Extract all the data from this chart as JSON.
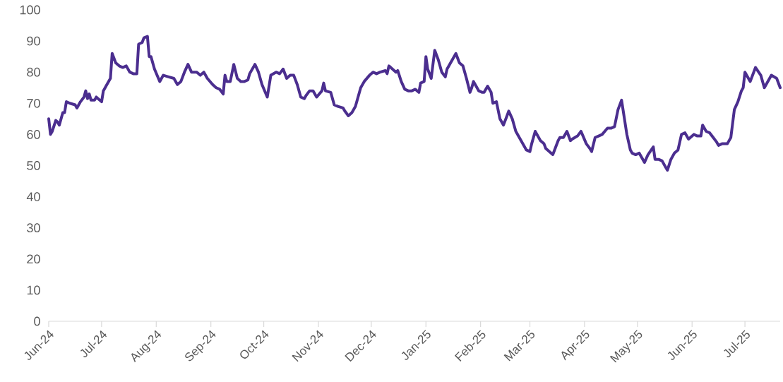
{
  "chart_data": {
    "type": "line",
    "x": [
      "2024-06-01",
      "2024-06-02",
      "2024-06-03",
      "2024-06-05",
      "2024-06-06",
      "2024-06-07",
      "2024-06-09",
      "2024-06-10",
      "2024-06-11",
      "2024-06-13",
      "2024-06-16",
      "2024-06-17",
      "2024-06-19",
      "2024-06-21",
      "2024-06-22",
      "2024-06-23",
      "2024-06-24",
      "2024-06-25",
      "2024-06-27",
      "2024-06-28",
      "2024-06-29",
      "2024-07-01",
      "2024-07-02",
      "2024-07-04",
      "2024-07-06",
      "2024-07-07",
      "2024-07-09",
      "2024-07-11",
      "2024-07-13",
      "2024-07-15",
      "2024-07-17",
      "2024-07-19",
      "2024-07-21",
      "2024-07-22",
      "2024-07-24",
      "2024-07-25",
      "2024-07-27",
      "2024-07-28",
      "2024-07-29",
      "2024-07-31",
      "2024-08-03",
      "2024-08-05",
      "2024-08-08",
      "2024-08-11",
      "2024-08-13",
      "2024-08-15",
      "2024-08-17",
      "2024-08-19",
      "2024-08-21",
      "2024-08-24",
      "2024-08-26",
      "2024-08-28",
      "2024-08-30",
      "2024-09-02",
      "2024-09-04",
      "2024-09-06",
      "2024-09-08",
      "2024-09-09",
      "2024-09-10",
      "2024-09-12",
      "2024-09-14",
      "2024-09-16",
      "2024-09-18",
      "2024-09-20",
      "2024-09-22",
      "2024-09-23",
      "2024-09-26",
      "2024-09-28",
      "2024-09-30",
      "2024-10-03",
      "2024-10-05",
      "2024-10-08",
      "2024-10-10",
      "2024-10-12",
      "2024-10-14",
      "2024-10-16",
      "2024-10-18",
      "2024-10-20",
      "2024-10-22",
      "2024-10-24",
      "2024-10-25",
      "2024-10-27",
      "2024-10-29",
      "2024-10-31",
      "2024-11-03",
      "2024-11-04",
      "2024-11-05",
      "2024-11-08",
      "2024-11-10",
      "2024-11-12",
      "2024-11-15",
      "2024-11-16",
      "2024-11-18",
      "2024-11-20",
      "2024-11-22",
      "2024-11-25",
      "2024-11-27",
      "2024-11-30",
      "2024-12-02",
      "2024-12-04",
      "2024-12-06",
      "2024-12-09",
      "2024-12-10",
      "2024-12-11",
      "2024-12-13",
      "2024-12-15",
      "2024-12-16",
      "2024-12-18",
      "2024-12-20",
      "2024-12-22",
      "2024-12-24",
      "2024-12-26",
      "2024-12-28",
      "2024-12-29",
      "2024-12-31",
      "2025-01-01",
      "2025-01-02",
      "2025-01-04",
      "2025-01-06",
      "2025-01-08",
      "2025-01-10",
      "2025-01-12",
      "2025-01-13",
      "2025-01-15",
      "2025-01-18",
      "2025-01-20",
      "2025-01-22",
      "2025-01-24",
      "2025-01-26",
      "2025-01-27",
      "2025-01-28",
      "2025-01-31",
      "2025-02-02",
      "2025-02-03",
      "2025-02-05",
      "2025-02-07",
      "2025-02-08",
      "2025-02-10",
      "2025-02-12",
      "2025-02-14",
      "2025-02-16",
      "2025-02-17",
      "2025-02-19",
      "2025-02-21",
      "2025-02-24",
      "2025-02-27",
      "2025-03-01",
      "2025-03-02",
      "2025-03-04",
      "2025-03-06",
      "2025-03-07",
      "2025-03-09",
      "2025-03-10",
      "2025-03-12",
      "2025-03-14",
      "2025-03-17",
      "2025-03-18",
      "2025-03-20",
      "2025-03-22",
      "2025-03-24",
      "2025-03-25",
      "2025-03-28",
      "2025-03-30",
      "2025-04-02",
      "2025-04-04",
      "2025-04-05",
      "2025-04-07",
      "2025-04-09",
      "2025-04-11",
      "2025-04-14",
      "2025-04-16",
      "2025-04-18",
      "2025-04-20",
      "2025-04-22",
      "2025-04-25",
      "2025-04-27",
      "2025-04-28",
      "2025-04-30",
      "2025-05-02",
      "2025-05-03",
      "2025-05-05",
      "2025-05-07",
      "2025-05-10",
      "2025-05-11",
      "2025-05-13",
      "2025-05-15",
      "2025-05-17",
      "2025-05-18",
      "2025-05-20",
      "2025-05-22",
      "2025-05-24",
      "2025-05-26",
      "2025-05-28",
      "2025-05-30",
      "2025-06-02",
      "2025-06-04",
      "2025-06-06",
      "2025-06-07",
      "2025-06-09",
      "2025-06-11",
      "2025-06-13",
      "2025-06-15",
      "2025-06-16",
      "2025-06-18",
      "2025-06-21",
      "2025-06-23",
      "2025-06-25",
      "2025-06-27",
      "2025-06-29",
      "2025-06-30",
      "2025-07-01",
      "2025-07-04",
      "2025-07-07",
      "2025-07-10",
      "2025-07-12",
      "2025-07-14",
      "2025-07-16",
      "2025-07-19",
      "2025-07-21"
    ],
    "series": [
      {
        "color": "#4b2e8f",
        "values": [
          65,
          60,
          61,
          64.5,
          64,
          63,
          67,
          67,
          70.5,
          70,
          69.5,
          68.5,
          70.5,
          72,
          74,
          71.5,
          73,
          71,
          71,
          72,
          71.5,
          70.5,
          74,
          76,
          78,
          86,
          83,
          82,
          81.5,
          82,
          80,
          79.5,
          79.5,
          89,
          89.5,
          91,
          91.5,
          85,
          85,
          81,
          77,
          79,
          78.5,
          78,
          76,
          77,
          80,
          82.5,
          80,
          80,
          79,
          80,
          78,
          76,
          75,
          74.5,
          73,
          79,
          77,
          77,
          82.5,
          78,
          77,
          77,
          77.5,
          79.5,
          82.5,
          80,
          76,
          72,
          79,
          80,
          79.5,
          81,
          78,
          79,
          79,
          76,
          72,
          71.5,
          72.5,
          74,
          74,
          72,
          74,
          76.5,
          74,
          73.5,
          69.5,
          69,
          68.5,
          67.5,
          66,
          67,
          69,
          75,
          77,
          79,
          80,
          79.5,
          80,
          80.5,
          79.5,
          82,
          81,
          80,
          80.5,
          77,
          74.5,
          74,
          74,
          74.5,
          73.5,
          76.5,
          77,
          85,
          81,
          78,
          87,
          84,
          80,
          78.5,
          81,
          83,
          86,
          83,
          82,
          78,
          73.5,
          75,
          77,
          74,
          73.5,
          73.5,
          75.5,
          73.5,
          70,
          70.5,
          65,
          63,
          66,
          67.5,
          65,
          61,
          58,
          55,
          54.5,
          57,
          61,
          59,
          58,
          57,
          55.5,
          54.5,
          53.5,
          58,
          59,
          59,
          61,
          58,
          58.5,
          59.5,
          61,
          57,
          55.5,
          54.5,
          59,
          59.5,
          60,
          62,
          62,
          62.5,
          68,
          71,
          60,
          55,
          54,
          53.5,
          54,
          53,
          51,
          53.5,
          56,
          52,
          52,
          51.5,
          49.5,
          48.5,
          52,
          54,
          55,
          60,
          60.5,
          58.5,
          60,
          59.5,
          59.5,
          63,
          61,
          60.5,
          59,
          57.5,
          56.5,
          57,
          57,
          59,
          68,
          70.5,
          74,
          75,
          80,
          77,
          81.5,
          79,
          75,
          77,
          79,
          78,
          75
        ]
      }
    ],
    "xlim": [
      "2024-06-01",
      "2025-07-21"
    ],
    "xticks": [
      {
        "value": "2024-06-01",
        "label": "Jun-24"
      },
      {
        "value": "2024-07-01",
        "label": "Jul-24"
      },
      {
        "value": "2024-08-01",
        "label": "Aug-24"
      },
      {
        "value": "2024-09-01",
        "label": "Sep-24"
      },
      {
        "value": "2024-10-01",
        "label": "Oct-24"
      },
      {
        "value": "2024-11-01",
        "label": "Nov-24"
      },
      {
        "value": "2024-12-01",
        "label": "Dec-24"
      },
      {
        "value": "2025-01-01",
        "label": "Jan-25"
      },
      {
        "value": "2025-02-01",
        "label": "Feb-25"
      },
      {
        "value": "2025-03-01",
        "label": "Mar-25"
      },
      {
        "value": "2025-04-01",
        "label": "Apr-25"
      },
      {
        "value": "2025-05-01",
        "label": "May-25"
      },
      {
        "value": "2025-06-01",
        "label": "Jun-25"
      },
      {
        "value": "2025-07-01",
        "label": "Jul-25"
      }
    ],
    "ylim": [
      0,
      100
    ],
    "yticks": [
      0,
      10,
      20,
      30,
      40,
      50,
      60,
      70,
      80,
      90,
      100
    ],
    "line_style": "solid"
  }
}
